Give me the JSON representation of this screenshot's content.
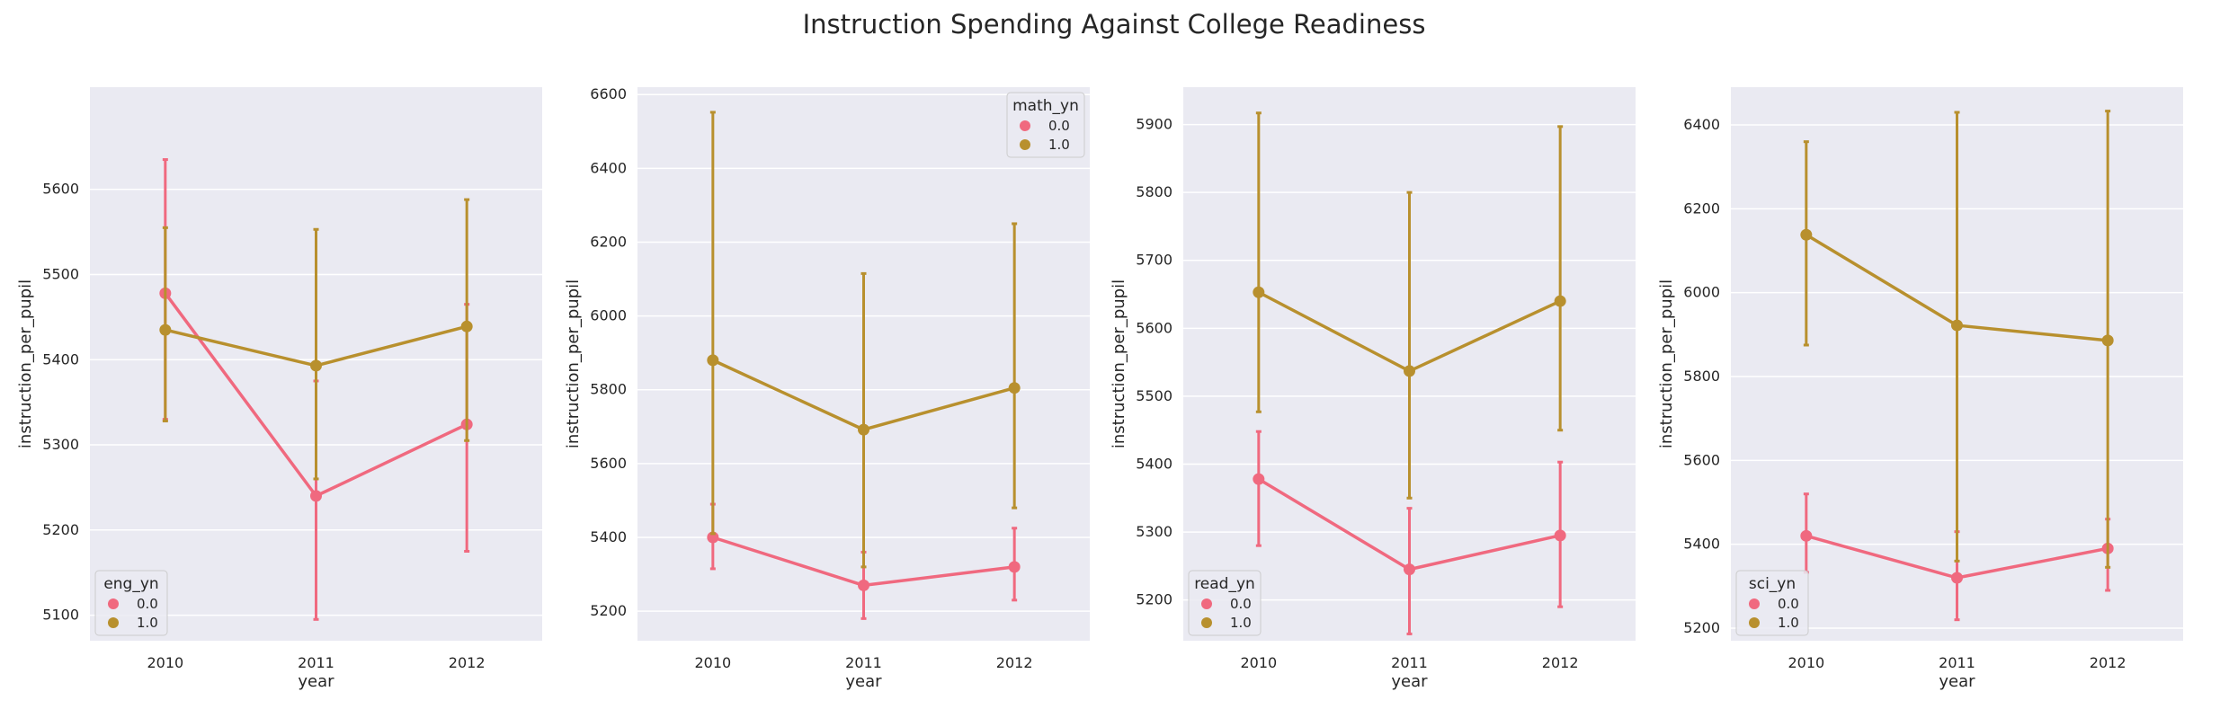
{
  "figure": {
    "title": "Instruction Spending Against College Readiness"
  },
  "colors": {
    "series_0": "#f0697f",
    "series_1": "#b8902e",
    "axes_bg": "#eaeaf2",
    "grid": "#ffffff"
  },
  "chart_data": [
    {
      "type": "line",
      "xlabel": "year",
      "ylabel": "instruction_per_pupil",
      "categories": [
        "2010",
        "2011",
        "2012"
      ],
      "ylim": [
        5070,
        5720
      ],
      "yticks": [
        5100,
        5200,
        5300,
        5400,
        5500,
        5600
      ],
      "legend": {
        "title": "eng_yn",
        "placement": "lower-left"
      },
      "series": [
        {
          "name": "0.0",
          "values": [
            5478,
            5240,
            5324
          ],
          "err_low": [
            5330,
            5095,
            5175
          ],
          "err_high": [
            5635,
            5375,
            5465
          ]
        },
        {
          "name": "1.0",
          "values": [
            5435,
            5393,
            5439
          ],
          "err_low": [
            5328,
            5260,
            5305
          ],
          "err_high": [
            5555,
            5553,
            5588
          ]
        }
      ]
    },
    {
      "type": "line",
      "xlabel": "year",
      "ylabel": "instruction_per_pupil",
      "categories": [
        "2010",
        "2011",
        "2012"
      ],
      "ylim": [
        5120,
        6620
      ],
      "yticks": [
        5200,
        5400,
        5600,
        5800,
        6000,
        6200,
        6400,
        6600
      ],
      "legend": {
        "title": "math_yn",
        "placement": "upper-right"
      },
      "series": [
        {
          "name": "0.0",
          "values": [
            5400,
            5270,
            5320
          ],
          "err_low": [
            5315,
            5180,
            5230
          ],
          "err_high": [
            5490,
            5360,
            5425
          ]
        },
        {
          "name": "1.0",
          "values": [
            5880,
            5692,
            5805
          ],
          "err_low": [
            5410,
            5320,
            5480
          ],
          "err_high": [
            6552,
            6115,
            6250
          ]
        }
      ]
    },
    {
      "type": "line",
      "xlabel": "year",
      "ylabel": "instruction_per_pupil",
      "categories": [
        "2010",
        "2011",
        "2012"
      ],
      "ylim": [
        5140,
        5955
      ],
      "yticks": [
        5200,
        5300,
        5400,
        5500,
        5600,
        5700,
        5800,
        5900
      ],
      "legend": {
        "title": "read_yn",
        "placement": "lower-left"
      },
      "series": [
        {
          "name": "0.0",
          "values": [
            5378,
            5245,
            5295
          ],
          "err_low": [
            5280,
            5150,
            5190
          ],
          "err_high": [
            5448,
            5335,
            5403
          ]
        },
        {
          "name": "1.0",
          "values": [
            5653,
            5537,
            5640
          ],
          "err_low": [
            5477,
            5350,
            5450
          ],
          "err_high": [
            5917,
            5800,
            5897
          ]
        }
      ]
    },
    {
      "type": "line",
      "xlabel": "year",
      "ylabel": "instruction_per_pupil",
      "categories": [
        "2010",
        "2011",
        "2012"
      ],
      "ylim": [
        5170,
        6490
      ],
      "yticks": [
        5200,
        5400,
        5600,
        5800,
        6000,
        6200,
        6400
      ],
      "legend": {
        "title": "sci_yn",
        "placement": "lower-left"
      },
      "series": [
        {
          "name": "0.0",
          "values": [
            5420,
            5320,
            5390
          ],
          "err_low": [
            5333,
            5220,
            5290
          ],
          "err_high": [
            5520,
            5430,
            5460
          ]
        },
        {
          "name": "1.0",
          "values": [
            6138,
            5922,
            5886
          ],
          "err_low": [
            5875,
            5360,
            5345
          ],
          "err_high": [
            6360,
            6430,
            6433
          ]
        }
      ]
    }
  ]
}
